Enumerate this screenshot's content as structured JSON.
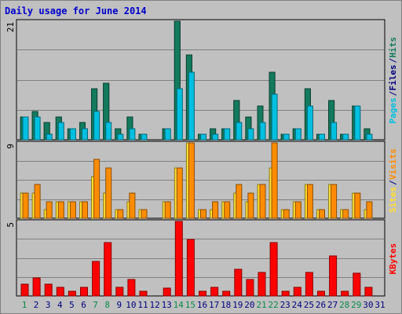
{
  "title": "Daily usage for June 2014",
  "colors": {
    "pages": "#00c0e0",
    "files": "#147a5e",
    "hits": "#147a5e",
    "sites": "#ffe030",
    "visits": "#ff8c00",
    "kbytes": "#ff0000",
    "weekend_day": "#0a8a4a",
    "weekday": "#000080",
    "separator": "#000080"
  },
  "chart_data": [
    {
      "type": "bar",
      "panel": "hits",
      "ymax_label": "21",
      "ylim": [
        0,
        21
      ],
      "legend": [
        "Pages",
        "/",
        "Files",
        "/",
        "Hits"
      ],
      "categories": [
        "1",
        "2",
        "3",
        "4",
        "5",
        "6",
        "7",
        "8",
        "9",
        "10",
        "11",
        "12",
        "13",
        "14",
        "15",
        "16",
        "17",
        "18",
        "19",
        "20",
        "21",
        "22",
        "23",
        "24",
        "25",
        "26",
        "27",
        "28",
        "29",
        "30",
        "31"
      ],
      "series": [
        {
          "name": "Hits",
          "values": [
            4,
            5,
            3,
            4,
            2,
            3,
            9,
            10,
            2,
            4,
            1,
            0,
            2,
            21,
            15,
            1,
            2,
            2,
            7,
            4,
            6,
            12,
            1,
            2,
            9,
            1,
            7,
            1,
            6,
            2,
            0
          ]
        },
        {
          "name": "Files",
          "values": [
            4,
            5,
            3,
            4,
            2,
            3,
            9,
            10,
            2,
            4,
            1,
            0,
            2,
            21,
            15,
            1,
            2,
            2,
            7,
            4,
            6,
            12,
            1,
            2,
            9,
            1,
            7,
            1,
            6,
            2,
            0
          ]
        },
        {
          "name": "Pages",
          "values": [
            4,
            4,
            1,
            3,
            2,
            2,
            5,
            3,
            1,
            2,
            1,
            0,
            2,
            9,
            12,
            1,
            1,
            2,
            3,
            2,
            3,
            8,
            1,
            2,
            6,
            1,
            3,
            1,
            6,
            1,
            0
          ]
        }
      ]
    },
    {
      "type": "bar",
      "panel": "visits",
      "ymax_label": "9",
      "ylim": [
        0,
        9
      ],
      "legend": [
        "Sites",
        "/",
        "Visits"
      ],
      "categories": [
        "1",
        "2",
        "3",
        "4",
        "5",
        "6",
        "7",
        "8",
        "9",
        "10",
        "11",
        "12",
        "13",
        "14",
        "15",
        "16",
        "17",
        "18",
        "19",
        "20",
        "21",
        "22",
        "23",
        "24",
        "25",
        "26",
        "27",
        "28",
        "29",
        "30",
        "31"
      ],
      "series": [
        {
          "name": "Visits",
          "values": [
            3,
            4,
            2,
            2,
            2,
            2,
            7,
            6,
            1,
            3,
            1,
            0,
            2,
            6,
            9,
            1,
            2,
            2,
            4,
            3,
            4,
            9,
            1,
            2,
            4,
            1,
            4,
            1,
            3,
            2,
            0
          ]
        },
        {
          "name": "Sites",
          "values": [
            3,
            3,
            1,
            2,
            2,
            2,
            5,
            3,
            1,
            2,
            1,
            0,
            2,
            6,
            9,
            1,
            1,
            2,
            3,
            2,
            4,
            6,
            1,
            2,
            4,
            1,
            4,
            1,
            3,
            1,
            0
          ]
        }
      ]
    },
    {
      "type": "bar",
      "panel": "kbytes",
      "ymax_label": "5",
      "ylim": [
        0,
        5
      ],
      "legend": [
        "KBytes"
      ],
      "categories": [
        "1",
        "2",
        "3",
        "4",
        "5",
        "6",
        "7",
        "8",
        "9",
        "10",
        "11",
        "12",
        "13",
        "14",
        "15",
        "16",
        "17",
        "18",
        "19",
        "20",
        "21",
        "22",
        "23",
        "24",
        "25",
        "26",
        "27",
        "28",
        "29",
        "30",
        "31"
      ],
      "series": [
        {
          "name": "KBytes",
          "values": [
            0.8,
            1.2,
            0.8,
            0.6,
            0.3,
            0.6,
            2.3,
            3.6,
            0.6,
            1.1,
            0.3,
            0,
            0.5,
            5,
            3.8,
            0.3,
            0.6,
            0.3,
            1.8,
            1.1,
            1.6,
            3.6,
            0.3,
            0.6,
            1.6,
            0.3,
            2.7,
            0.3,
            1.5,
            0.6,
            0
          ]
        }
      ]
    }
  ]
}
